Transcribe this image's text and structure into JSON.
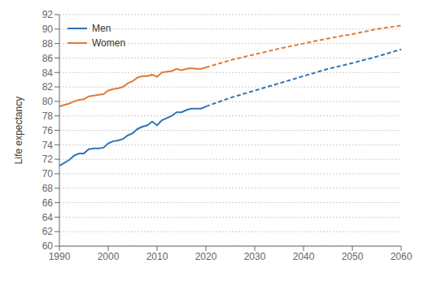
{
  "chart_data": {
    "type": "line",
    "y_label": "Life expectancy",
    "xlim": [
      1990,
      2060
    ],
    "xticks": [
      1990,
      2000,
      2010,
      2020,
      2030,
      2040,
      2050,
      2060
    ],
    "ylim": [
      60,
      92
    ],
    "yticks": [
      60,
      62,
      64,
      66,
      68,
      70,
      72,
      74,
      76,
      78,
      80,
      82,
      84,
      86,
      88,
      90,
      92
    ],
    "grid": true,
    "legend": "upper left",
    "series": [
      {
        "name": "Men",
        "color": "#2e75b6",
        "line_style": "solid",
        "x": [
          1990,
          1991,
          1992,
          1993,
          1994,
          1995,
          1996,
          1997,
          1998,
          1999,
          2000,
          2001,
          2002,
          2003,
          2004,
          2005,
          2006,
          2007,
          2008,
          2009,
          2010,
          2011,
          2012,
          2013,
          2014,
          2015,
          2016,
          2017,
          2018,
          2019,
          2020
        ],
        "values": [
          71.1,
          71.5,
          71.9,
          72.5,
          72.8,
          72.8,
          73.4,
          73.5,
          73.5,
          73.6,
          74.2,
          74.5,
          74.6,
          74.8,
          75.3,
          75.6,
          76.2,
          76.5,
          76.7,
          77.2,
          76.7,
          77.4,
          77.7,
          78.0,
          78.5,
          78.5,
          78.8,
          79.0,
          79.0,
          79.0,
          79.3
        ]
      },
      {
        "name": "Women",
        "color": "#e07b39",
        "line_style": "solid",
        "x": [
          1990,
          1991,
          1992,
          1993,
          1994,
          1995,
          1996,
          1997,
          1998,
          1999,
          2000,
          2001,
          2002,
          2003,
          2004,
          2005,
          2006,
          2007,
          2008,
          2009,
          2010,
          2011,
          2012,
          2013,
          2014,
          2015,
          2016,
          2017,
          2018,
          2019,
          2020
        ],
        "values": [
          79.3,
          79.5,
          79.7,
          80.0,
          80.2,
          80.3,
          80.7,
          80.8,
          80.9,
          81.0,
          81.5,
          81.7,
          81.8,
          82.0,
          82.5,
          82.8,
          83.3,
          83.5,
          83.5,
          83.7,
          83.4,
          84.0,
          84.1,
          84.2,
          84.5,
          84.3,
          84.5,
          84.6,
          84.5,
          84.5,
          84.7
        ]
      },
      {
        "color": "#2e75b6",
        "line_style": "dashed",
        "x": [
          2020,
          2025,
          2030,
          2035,
          2040,
          2045,
          2050,
          2055,
          2060
        ],
        "values": [
          79.3,
          80.5,
          81.5,
          82.5,
          83.5,
          84.5,
          85.3,
          86.2,
          87.2
        ]
      },
      {
        "color": "#e07b39",
        "line_style": "dashed",
        "x": [
          2020,
          2025,
          2030,
          2035,
          2040,
          2045,
          2050,
          2055,
          2060
        ],
        "values": [
          84.7,
          85.7,
          86.5,
          87.3,
          88.0,
          88.7,
          89.3,
          90.0,
          90.5
        ]
      }
    ]
  }
}
